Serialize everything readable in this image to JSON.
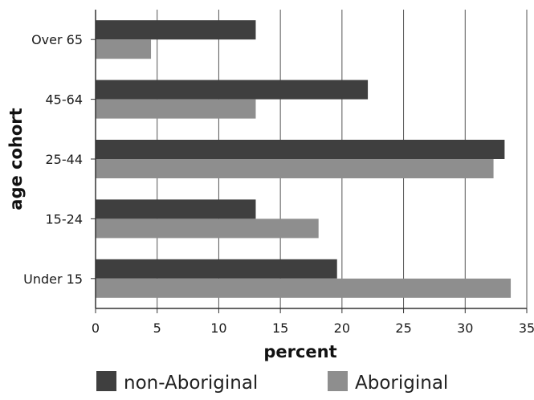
{
  "chart_data": {
    "type": "bar",
    "orientation": "horizontal",
    "categories": [
      "Over 65",
      "45-64",
      "25-44",
      "15-24",
      "Under 15"
    ],
    "series": [
      {
        "name": "non-Aboriginal",
        "values": [
          13,
          22.1,
          33.2,
          13,
          19.6
        ]
      },
      {
        "name": "Aboriginal",
        "values": [
          4.5,
          13,
          32.3,
          18.1,
          33.7
        ]
      }
    ],
    "xlabel": "percent",
    "ylabel": "age cohort",
    "xlim": [
      0,
      35
    ],
    "xticks": [
      "0",
      "5",
      "10",
      "15",
      "20",
      "25",
      "30",
      "35"
    ],
    "grid": "vertical",
    "legend": "bottom",
    "colors": {
      "non-Aboriginal": "#3f3f3f",
      "Aboriginal": "#8e8e8e"
    }
  }
}
